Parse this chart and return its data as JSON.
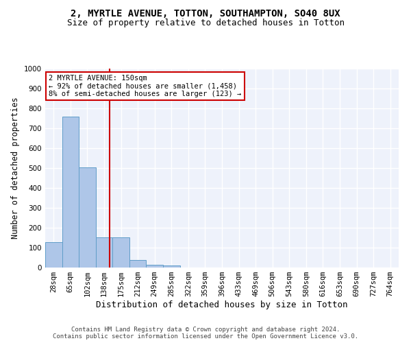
{
  "title_line1": "2, MYRTLE AVENUE, TOTTON, SOUTHAMPTON, SO40 8UX",
  "title_line2": "Size of property relative to detached houses in Totton",
  "xlabel": "Distribution of detached houses by size in Totton",
  "ylabel": "Number of detached properties",
  "bin_labels": [
    "28sqm",
    "65sqm",
    "102sqm",
    "138sqm",
    "175sqm",
    "212sqm",
    "249sqm",
    "285sqm",
    "322sqm",
    "359sqm",
    "396sqm",
    "433sqm",
    "469sqm",
    "506sqm",
    "543sqm",
    "580sqm",
    "616sqm",
    "653sqm",
    "690sqm",
    "727sqm",
    "764sqm"
  ],
  "bar_values": [
    127,
    760,
    505,
    152,
    152,
    38,
    15,
    9,
    0,
    0,
    0,
    0,
    0,
    0,
    0,
    0,
    0,
    0,
    0,
    0,
    0
  ],
  "bar_color": "#aec6e8",
  "bar_edgecolor": "#5f9dc8",
  "vline_color": "#cc0000",
  "annotation_text": "2 MYRTLE AVENUE: 150sqm\n← 92% of detached houses are smaller (1,458)\n8% of semi-detached houses are larger (123) →",
  "annotation_box_color": "#cc0000",
  "ylim": [
    0,
    1000
  ],
  "yticks": [
    0,
    100,
    200,
    300,
    400,
    500,
    600,
    700,
    800,
    900,
    1000
  ],
  "footer_line1": "Contains HM Land Registry data © Crown copyright and database right 2024.",
  "footer_line2": "Contains public sector information licensed under the Open Government Licence v3.0.",
  "background_color": "#eef2fb",
  "grid_color": "#ffffff",
  "title_fontsize": 10,
  "subtitle_fontsize": 9,
  "axis_label_fontsize": 8.5,
  "tick_fontsize": 7.5,
  "annotation_fontsize": 7.5,
  "footer_fontsize": 6.5
}
